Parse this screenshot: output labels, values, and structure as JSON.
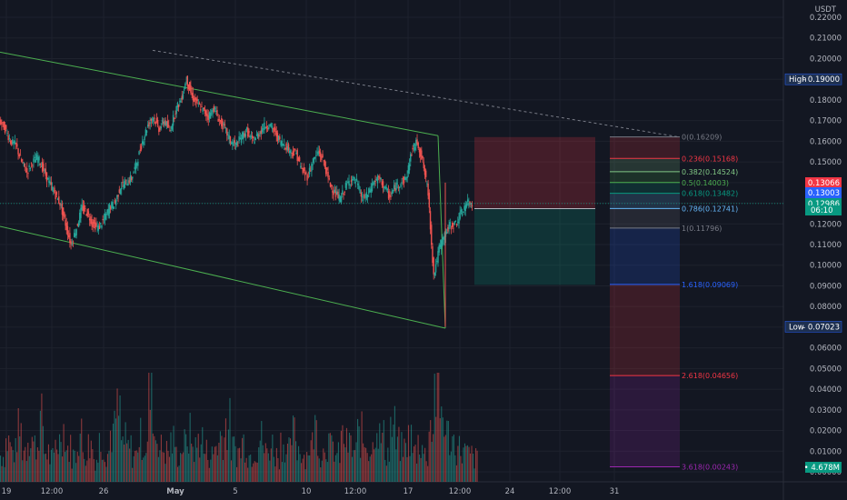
{
  "chart_data": {
    "type": "candlestick",
    "currency": "USDT",
    "y_axis": {
      "ticks": [
        "0.22000",
        "0.21000",
        "0.20000",
        "0.19000",
        "0.18000",
        "0.17000",
        "0.16000",
        "0.15000",
        "0.14000",
        "0.13000",
        "0.12000",
        "0.11000",
        "0.10000",
        "0.09000",
        "0.08000",
        "0.07000",
        "0.06000",
        "0.05000",
        "0.04000",
        "0.03000",
        "0.02000",
        "0.01000",
        "0.00000"
      ],
      "ylim": [
        0.0,
        0.22
      ]
    },
    "x_axis": {
      "ticks": [
        "19",
        "12:00",
        "26",
        "May",
        "5",
        "12:00",
        "10",
        "12:00",
        "17",
        "12:00",
        "24",
        "12:00",
        "31"
      ]
    },
    "high": {
      "label": "High",
      "value": "0.19000"
    },
    "low": {
      "label": "Low",
      "value": "0.07023"
    },
    "price_tags": [
      {
        "value": "0.13066",
        "color": "#f23645"
      },
      {
        "value": "0.13003",
        "color": "#2962ff"
      },
      {
        "value": "0.12986",
        "color": "#089981"
      }
    ],
    "countdown": "06:10",
    "volume_tag": "4.678M",
    "fib_levels": [
      {
        "label": "0(0.16209)",
        "ratio": "0",
        "price": 0.16209,
        "color": "#787b86"
      },
      {
        "label": "0.236(0.15168)",
        "ratio": "0.236",
        "price": 0.15168,
        "color": "#f23645"
      },
      {
        "label": "0.382(0.14524)",
        "ratio": "0.382",
        "price": 0.14524,
        "color": "#81c784"
      },
      {
        "label": "0.5(0.14003)",
        "ratio": "0.5",
        "price": 0.14003,
        "color": "#4caf50"
      },
      {
        "label": "0.618(0.13482)",
        "ratio": "0.618",
        "price": 0.13482,
        "color": "#089981"
      },
      {
        "label": "0.786(0.12741)",
        "ratio": "0.786",
        "price": 0.12741,
        "color": "#64b5f6"
      },
      {
        "label": "1(0.11796)",
        "ratio": "1",
        "price": 0.11796,
        "color": "#787b86"
      },
      {
        "label": "1.618(0.09069)",
        "ratio": "1.618",
        "price": 0.09069,
        "color": "#2962ff"
      },
      {
        "label": "2.618(0.04656)",
        "ratio": "2.618",
        "price": 0.04656,
        "color": "#f23645"
      },
      {
        "label": "3.618(0.00243)",
        "ratio": "3.618",
        "price": 0.00243,
        "color": "#9c27b0"
      }
    ],
    "position": {
      "entry": 0.1274,
      "stop": 0.162,
      "target": 0.0905
    },
    "channel": {
      "upper": [
        [
          0.2031,
          "start"
        ],
        [
          0.1627,
          "end"
        ]
      ],
      "lower": [
        [
          0.1188,
          "start"
        ],
        [
          0.0695,
          "end"
        ]
      ]
    },
    "trendline_dashed": [
      0.204,
      0.162
    ],
    "price_series": [
      0.17,
      0.166,
      0.16,
      0.158,
      0.15,
      0.145,
      0.15,
      0.152,
      0.146,
      0.14,
      0.135,
      0.13,
      0.12,
      0.11,
      0.118,
      0.128,
      0.125,
      0.12,
      0.118,
      0.122,
      0.128,
      0.13,
      0.138,
      0.14,
      0.142,
      0.15,
      0.16,
      0.168,
      0.172,
      0.166,
      0.17,
      0.165,
      0.175,
      0.18,
      0.19,
      0.182,
      0.178,
      0.175,
      0.172,
      0.176,
      0.17,
      0.166,
      0.16,
      0.158,
      0.162,
      0.165,
      0.16,
      0.163,
      0.167,
      0.168,
      0.165,
      0.16,
      0.158,
      0.155,
      0.154,
      0.146,
      0.143,
      0.15,
      0.155,
      0.15,
      0.14,
      0.135,
      0.132,
      0.138,
      0.142,
      0.14,
      0.132,
      0.134,
      0.14,
      0.142,
      0.138,
      0.133,
      0.138,
      0.14,
      0.142,
      0.155,
      0.16,
      0.15,
      0.135,
      0.095,
      0.108,
      0.115,
      0.119,
      0.12,
      0.125,
      0.13,
      0.1299
    ],
    "volume_series": [
      8,
      12,
      9,
      15,
      10,
      14,
      11,
      18,
      9,
      7,
      12,
      16,
      10,
      8,
      14,
      9,
      11,
      7,
      12,
      9,
      15,
      20,
      12,
      10,
      8,
      13,
      11,
      26,
      14,
      10,
      9,
      12,
      8,
      11,
      14,
      10,
      13,
      9,
      8,
      11,
      14,
      17,
      10,
      9,
      12,
      8,
      10,
      13,
      9,
      11,
      8,
      12,
      9,
      14,
      10,
      8,
      11,
      16,
      9,
      12,
      10,
      8,
      13,
      11,
      9,
      14,
      12,
      10,
      18,
      13,
      9,
      16,
      11,
      10,
      13,
      9,
      12,
      8,
      17,
      28,
      21,
      14,
      12,
      10,
      9,
      8,
      7
    ]
  }
}
